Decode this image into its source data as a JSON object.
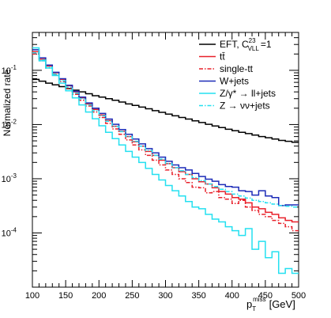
{
  "chart_data": {
    "type": "line",
    "title": "",
    "xlabel": "p_T^miss [GeV]",
    "xlabel_main": "p",
    "xlabel_sub": "T",
    "xlabel_sup": "miss",
    "xlabel_unit": "[GeV]",
    "ylabel": "Normalized rate",
    "xlim": [
      100,
      500
    ],
    "ylim": [
      1e-05,
      0.5
    ],
    "yscale": "log",
    "grid": false,
    "legend_position": "top-right",
    "x_ticks": [
      "100",
      "150",
      "200",
      "250",
      "300",
      "350",
      "400",
      "450",
      "500"
    ],
    "y_ticks": [
      {
        "base": "10",
        "exp": "-1"
      },
      {
        "base": "10",
        "exp": "-2"
      },
      {
        "base": "10",
        "exp": "-3"
      },
      {
        "base": "10",
        "exp": "-4"
      }
    ],
    "bin_edges": [
      100,
      110,
      120,
      130,
      140,
      150,
      160,
      170,
      180,
      190,
      200,
      210,
      220,
      230,
      240,
      250,
      260,
      270,
      280,
      290,
      300,
      310,
      320,
      330,
      340,
      350,
      360,
      370,
      380,
      390,
      400,
      410,
      420,
      430,
      440,
      450,
      460,
      470,
      480,
      490,
      500
    ],
    "series": [
      {
        "label_main": "EFT, C",
        "label_sup": "23",
        "label_sub": "VLL",
        "label_tail": "=1",
        "color": "#000000",
        "dash": "",
        "values": [
          0.068,
          0.063,
          0.058,
          0.054,
          0.05,
          0.046,
          0.043,
          0.04,
          0.037,
          0.034,
          0.032,
          0.03,
          0.028,
          0.026,
          0.024,
          0.0225,
          0.021,
          0.0195,
          0.018,
          0.0168,
          0.0156,
          0.0145,
          0.0135,
          0.0126,
          0.0117,
          0.0109,
          0.0101,
          0.0094,
          0.0088,
          0.0082,
          0.0077,
          0.0072,
          0.0068,
          0.0064,
          0.006,
          0.0057,
          0.0054,
          0.0051,
          0.0049,
          0.0047
        ]
      },
      {
        "label_main": "tt̄",
        "color": "#e8202a",
        "dash": "",
        "values": [
          0.22,
          0.16,
          0.12,
          0.09,
          0.068,
          0.052,
          0.04,
          0.031,
          0.024,
          0.019,
          0.015,
          0.0118,
          0.0093,
          0.0075,
          0.006,
          0.0048,
          0.004,
          0.0032,
          0.0027,
          0.0022,
          0.0019,
          0.0016,
          0.00135,
          0.0012,
          0.001,
          0.00088,
          0.0008,
          0.00068,
          0.00058,
          0.00052,
          0.00045,
          0.00042,
          0.00036,
          0.0003,
          0.00028,
          0.00024,
          0.00022,
          0.00019,
          0.00017,
          0.00016
        ]
      },
      {
        "label_main": "single-tt",
        "color": "#e8202a",
        "dash": "5,2,1.5,2",
        "values": [
          0.2,
          0.15,
          0.11,
          0.083,
          0.062,
          0.047,
          0.036,
          0.028,
          0.022,
          0.017,
          0.0135,
          0.0105,
          0.0083,
          0.0066,
          0.0052,
          0.0042,
          0.0034,
          0.0027,
          0.0022,
          0.0018,
          0.00145,
          0.0012,
          0.001,
          0.00085,
          0.0007,
          0.00068,
          0.00055,
          0.00058,
          0.00045,
          0.00042,
          0.00035,
          0.0004,
          0.0003,
          0.00026,
          0.00022,
          0.0002,
          0.00017,
          0.00015,
          0.00013,
          0.00011
        ]
      },
      {
        "label_main": "W+jets",
        "color": "#1c2bb8",
        "dash": "",
        "values": [
          0.24,
          0.17,
          0.125,
          0.092,
          0.07,
          0.053,
          0.041,
          0.032,
          0.025,
          0.02,
          0.016,
          0.0126,
          0.0101,
          0.0081,
          0.0066,
          0.0054,
          0.0044,
          0.0036,
          0.003,
          0.0025,
          0.0021,
          0.0018,
          0.0016,
          0.00145,
          0.00125,
          0.0011,
          0.00098,
          0.0009,
          0.00078,
          0.00072,
          0.0007,
          0.0006,
          0.00058,
          0.0005,
          0.0006,
          0.00048,
          0.00045,
          0.00032,
          0.00033,
          0.00033
        ]
      },
      {
        "label_main": "Z/γ* → ll+jets",
        "color": "#24e0f0",
        "dash": "",
        "values": [
          0.26,
          0.15,
          0.11,
          0.08,
          0.058,
          0.042,
          0.031,
          0.023,
          0.017,
          0.0128,
          0.0095,
          0.0072,
          0.0055,
          0.0042,
          0.0032,
          0.0025,
          0.002,
          0.00155,
          0.0012,
          0.00095,
          0.00075,
          0.0006,
          0.00048,
          0.00038,
          0.0003,
          0.00028,
          0.00022,
          0.00018,
          0.00016,
          0.00013,
          0.00011,
          9e-05,
          0.00012,
          5e-05,
          7e-05,
          3.5e-05,
          4.5e-05,
          1.8e-05,
          2.2e-05,
          1.8e-05
        ]
      },
      {
        "label_main": "Z → νν+jets",
        "color": "#24e0f0",
        "dash": "5,2,1.5,2",
        "values": [
          0.21,
          0.155,
          0.115,
          0.085,
          0.064,
          0.049,
          0.038,
          0.03,
          0.023,
          0.018,
          0.0145,
          0.0115,
          0.0092,
          0.0074,
          0.006,
          0.0049,
          0.004,
          0.0033,
          0.0027,
          0.0023,
          0.0019,
          0.0016,
          0.0014,
          0.0012,
          0.00105,
          0.00092,
          0.0008,
          0.00072,
          0.00064,
          0.00058,
          0.00052,
          0.00048,
          0.00044,
          0.0004,
          0.00038,
          0.00036,
          0.00034,
          0.00032,
          0.00031,
          0.0003
        ]
      }
    ]
  }
}
